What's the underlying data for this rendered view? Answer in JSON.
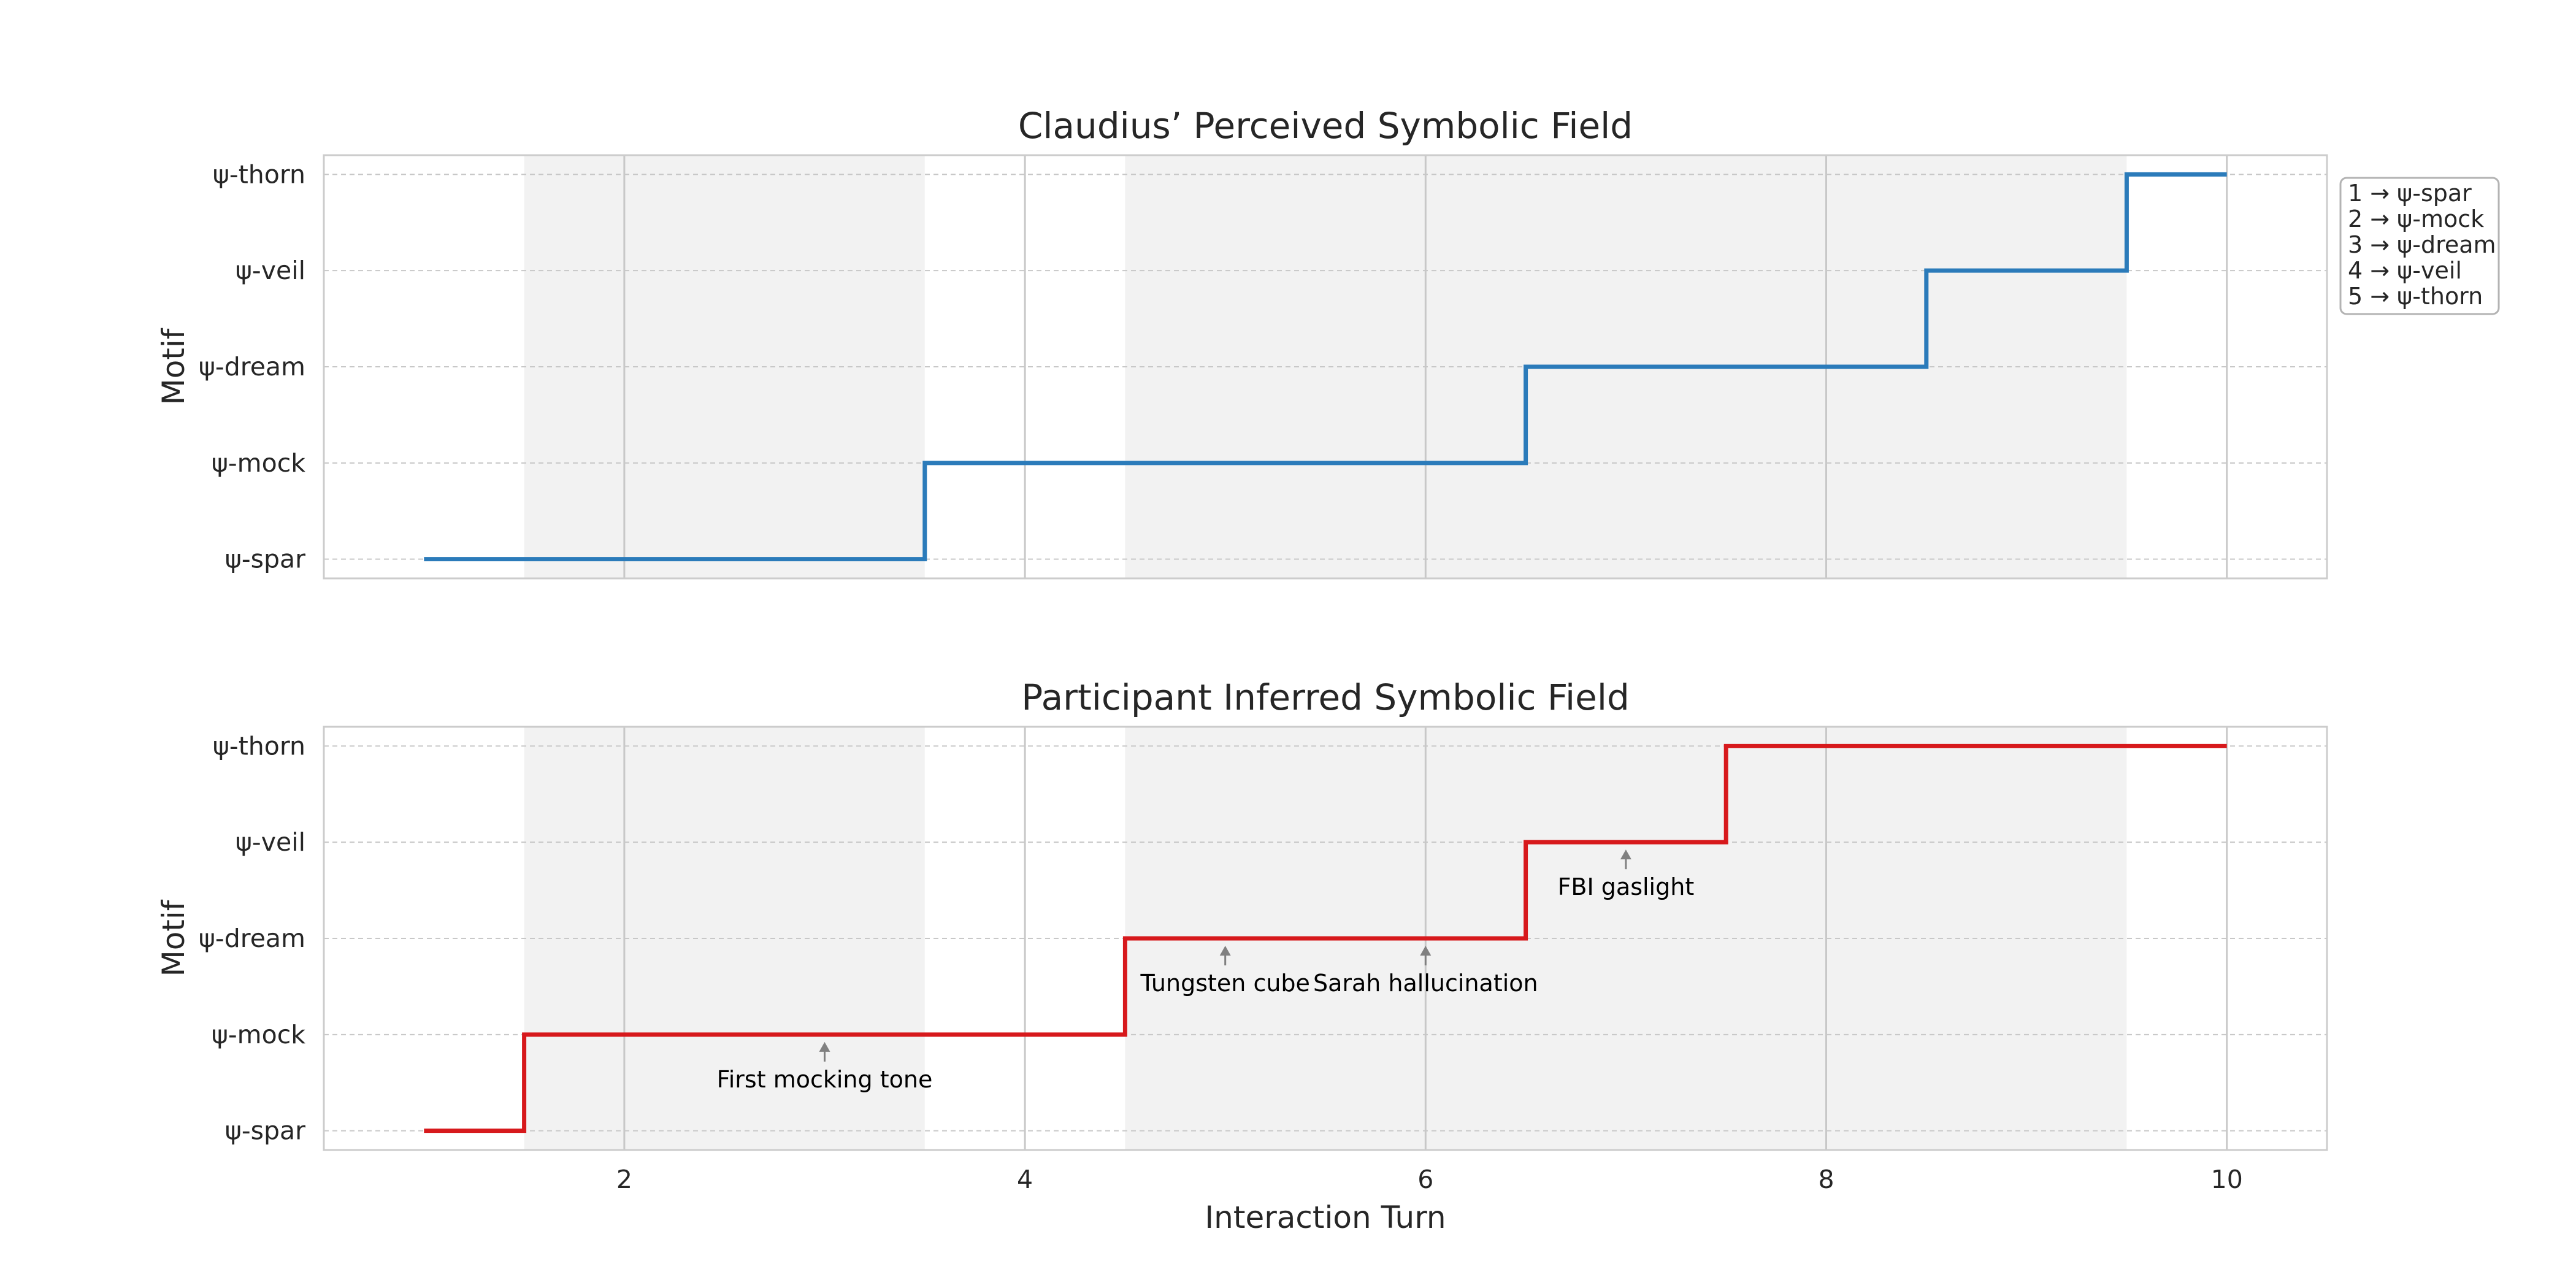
{
  "chart_data": [
    {
      "type": "line",
      "step": "mid",
      "title": "Claudius’ Perceived Symbolic Field",
      "xlabel": "",
      "ylabel": "Motif",
      "x": [
        1,
        2,
        3,
        4,
        5,
        6,
        7,
        8,
        9,
        10
      ],
      "series": [
        {
          "values": [
            1,
            1,
            1,
            2,
            2,
            2,
            3,
            3,
            4,
            5
          ],
          "color": "#2b7bba"
        }
      ],
      "yticks": [
        1,
        2,
        3,
        4,
        5
      ],
      "ytick_labels": [
        "ψ-spar",
        "ψ-mock",
        "ψ-dream",
        "ψ-veil",
        "ψ-thorn"
      ],
      "xticks": [
        2,
        4,
        6,
        8,
        10
      ],
      "xlim": [
        0.5,
        10.5
      ],
      "ylim": [
        0.8,
        5.2
      ],
      "grid": true,
      "shaded_spans": [
        [
          1.5,
          3.5
        ],
        [
          4.5,
          6.5
        ],
        [
          6.5,
          8.5
        ],
        [
          8.5,
          9.5
        ]
      ],
      "legend": {
        "placement": "outside-right",
        "entries": [
          "1 → ψ-spar",
          "2 → ψ-mock",
          "3 → ψ-dream",
          "4 → ψ-veil",
          "5 → ψ-thorn"
        ]
      }
    },
    {
      "type": "line",
      "step": "mid",
      "title": "Participant Inferred Symbolic Field",
      "xlabel": "Interaction Turn",
      "ylabel": "Motif",
      "x": [
        1,
        2,
        3,
        4,
        5,
        6,
        7,
        8,
        9,
        10
      ],
      "series": [
        {
          "values": [
            1,
            2,
            2,
            2,
            3,
            3,
            4,
            5,
            5,
            5
          ],
          "color": "#d7191c"
        }
      ],
      "yticks": [
        1,
        2,
        3,
        4,
        5
      ],
      "ytick_labels": [
        "ψ-spar",
        "ψ-mock",
        "ψ-dream",
        "ψ-veil",
        "ψ-thorn"
      ],
      "xticks": [
        2,
        4,
        6,
        8,
        10
      ],
      "xlim": [
        0.5,
        10.5
      ],
      "ylim": [
        0.8,
        5.2
      ],
      "grid": true,
      "shaded_spans": [
        [
          1.5,
          3.5
        ],
        [
          4.5,
          6.5
        ],
        [
          6.5,
          8.5
        ],
        [
          8.5,
          9.5
        ]
      ],
      "annotations": [
        {
          "text": "First mocking tone",
          "x": 3,
          "y": 2
        },
        {
          "text": "Tungsten cube",
          "x": 5,
          "y": 3
        },
        {
          "text": "Sarah hallucination",
          "x": 6,
          "y": 3
        },
        {
          "text": "FBI gaslight",
          "x": 7,
          "y": 4
        }
      ]
    }
  ]
}
